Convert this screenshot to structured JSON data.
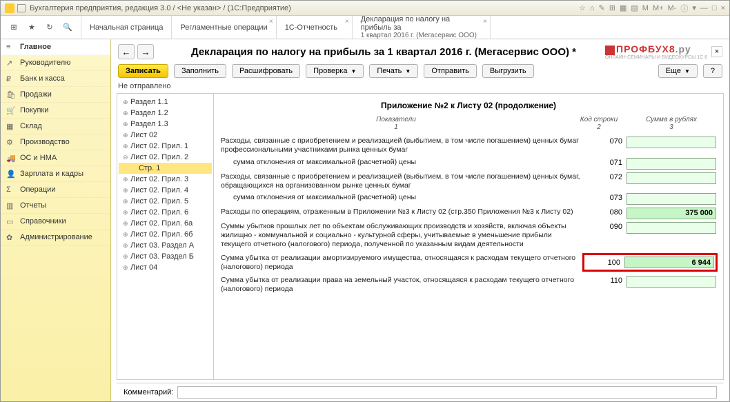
{
  "window": {
    "title": "Бухгалтерия предприятия, редакция 3.0 / <Не указан> / (1С:Предприятие)",
    "rightIcons": [
      "☆",
      "⌂",
      "✎",
      "⊞",
      "▦",
      "▤",
      "M",
      "M+",
      "M-",
      "ⓘ",
      "▾",
      "—",
      "□",
      "×"
    ]
  },
  "mainTabs": [
    {
      "label": "Начальная страница",
      "sub": ""
    },
    {
      "label": "Регламентные операции",
      "sub": ""
    },
    {
      "label": "1С-Отчетность",
      "sub": ""
    },
    {
      "label": "Декларация по налогу на прибыль за",
      "sub": "1 квартал 2016 г. (Мегасервис ООО)"
    }
  ],
  "nav": [
    {
      "icon": "≡",
      "label": "Главное",
      "active": true
    },
    {
      "icon": "↗",
      "label": "Руководителю"
    },
    {
      "icon": "₽",
      "label": "Банк и касса"
    },
    {
      "icon": "🛍",
      "label": "Продажи"
    },
    {
      "icon": "🛒",
      "label": "Покупки"
    },
    {
      "icon": "▦",
      "label": "Склад"
    },
    {
      "icon": "⚙",
      "label": "Производство"
    },
    {
      "icon": "🚚",
      "label": "ОС и НМА"
    },
    {
      "icon": "👤",
      "label": "Зарплата и кадры"
    },
    {
      "icon": "Σ",
      "label": "Операции"
    },
    {
      "icon": "▥",
      "label": "Отчеты"
    },
    {
      "icon": "▭",
      "label": "Справочники"
    },
    {
      "icon": "✿",
      "label": "Администрирование"
    }
  ],
  "doc": {
    "title": "Декларация по налогу на прибыль за 1 квартал 2016 г. (Мегасервис ООО) *",
    "logoMain": "ПРОФБУХ8",
    "logoRu": ".ру",
    "logoSub": "ОНЛАЙН-СЕМИНАРЫ И ВИДЕОКУРСЫ 1С 8",
    "status": "Не отправлено",
    "commentLabel": "Комментарий:",
    "commentValue": ""
  },
  "toolbar": {
    "write": "Записать",
    "fill": "Заполнить",
    "decode": "Расшифровать",
    "check": "Проверка",
    "print": "Печать",
    "send": "Отправить",
    "export": "Выгрузить",
    "more": "Еще",
    "help": "?"
  },
  "tree": [
    {
      "label": "Раздел 1.1",
      "lvl": 0
    },
    {
      "label": "Раздел 1.2",
      "lvl": 0
    },
    {
      "label": "Раздел 1.3",
      "lvl": 0
    },
    {
      "label": "Лист 02",
      "lvl": 0
    },
    {
      "label": "Лист 02. Прил. 1",
      "lvl": 0
    },
    {
      "label": "Лист 02. Прил. 2",
      "lvl": 0,
      "exp": true
    },
    {
      "label": "Стр. 1",
      "lvl": 1,
      "sel": true
    },
    {
      "label": "Лист 02. Прил. 3",
      "lvl": 0
    },
    {
      "label": "Лист 02. Прил. 4",
      "lvl": 0
    },
    {
      "label": "Лист 02. Прил. 5",
      "lvl": 0
    },
    {
      "label": "Лист 02. Прил. 6",
      "lvl": 0
    },
    {
      "label": "Лист 02. Прил. 6а",
      "lvl": 0
    },
    {
      "label": "Лист 02. Прил. 6б",
      "lvl": 0
    },
    {
      "label": "Лист 03. Раздел А",
      "lvl": 0
    },
    {
      "label": "Лист 03. Раздел Б",
      "lvl": 0
    },
    {
      "label": "Лист 04",
      "lvl": 0
    }
  ],
  "form": {
    "title": "Приложение №2 к Листу 02 (продолжение)",
    "hdr1": "Показатели\n1",
    "hdr2": "Код строки\n2",
    "hdr3": "Сумма в рублях\n3",
    "rows": [
      {
        "desc": "Расходы, связанные с приобретением и реализацией (выбытием, в том числе погашением) ценных бумаг профессиональными участниками рынка ценных бумаг",
        "code": "070",
        "val": ""
      },
      {
        "desc": "сумма отклонения от максимальной (расчетной) цены",
        "code": "071",
        "val": "",
        "indent": true
      },
      {
        "desc": "Расходы, связанные с приобретением и реализацией (выбытием, в том числе погашением) ценных бумаг, обращающихся на организованном рынке ценных бумаг",
        "code": "072",
        "val": ""
      },
      {
        "desc": "сумма отклонения от максимальной (расчетной) цены",
        "code": "073",
        "val": "",
        "indent": true
      },
      {
        "desc": "Расходы по операциям, отраженным в Приложении №3 к Листу 02 (стр.350 Приложения №3 к Листу 02)",
        "code": "080",
        "val": "375 000",
        "filled": true
      },
      {
        "desc": "Суммы убытков прошлых лет по объектам обслуживающих производств и хозяйств, включая объекты жилищно - коммунальной и социально - культурной сферы, учитываемые в уменьшение прибыли текущего отчетного (налогового) периода, полученной по указанным видам деятельности",
        "code": "090",
        "val": ""
      },
      {
        "desc": "Сумма убытка от реализации амортизируемого имущества, относящаяся к расходам текущего отчетного (налогового) периода",
        "code": "100",
        "val": "6 944",
        "filled": true,
        "highlight": true
      },
      {
        "desc": "Сумма убытка от реализации права на земельный участок, относящаяся к расходам текущего отчетного (налогового) периода",
        "code": "110",
        "val": ""
      }
    ]
  }
}
